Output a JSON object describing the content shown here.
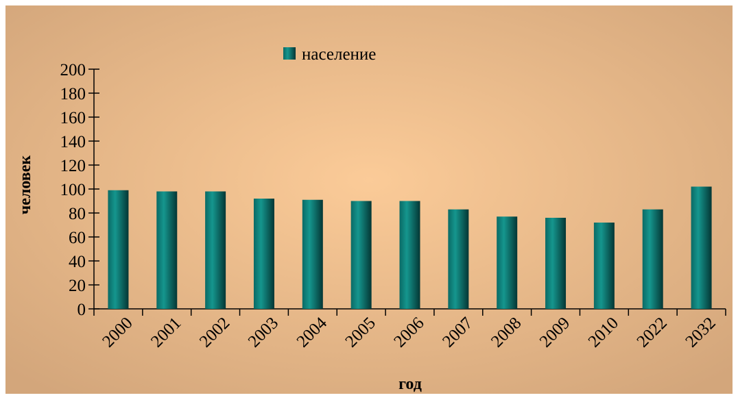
{
  "chart_data": {
    "type": "bar",
    "categories": [
      "2000",
      "2001",
      "2002",
      "2003",
      "2004",
      "2005",
      "2006",
      "2007",
      "2008",
      "2009",
      "2010",
      "2022",
      "2032"
    ],
    "series": [
      {
        "name": "население",
        "color": "#0e7a74",
        "values": [
          99,
          98,
          98,
          92,
          91,
          90,
          90,
          83,
          77,
          76,
          72,
          83,
          102
        ]
      }
    ],
    "ylim": [
      0,
      200
    ],
    "yticks": [
      0,
      20,
      40,
      60,
      80,
      100,
      120,
      140,
      160,
      180,
      200
    ],
    "y_label": "человек",
    "x_label": "год"
  }
}
